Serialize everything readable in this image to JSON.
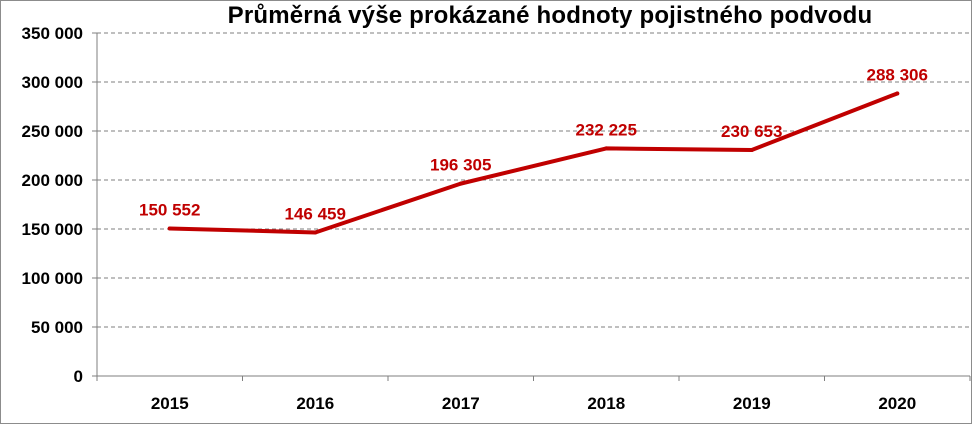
{
  "chart_data": {
    "type": "line",
    "title": "Průměrná výše prokázané hodnoty pojistného podvodu",
    "categories": [
      "2015",
      "2016",
      "2017",
      "2018",
      "2019",
      "2020"
    ],
    "series": [
      {
        "values": [
          150552,
          146459,
          196305,
          232225,
          230653,
          288306
        ],
        "labels": [
          "150 552",
          "146 459",
          "196 305",
          "232 225",
          "230 653",
          "288 306"
        ]
      }
    ],
    "yticks": [
      "0",
      "50 000",
      "100 000",
      "150 000",
      "200 000",
      "250 000",
      "300 000",
      "350 000"
    ],
    "ylim": [
      0,
      350000
    ],
    "grid": true,
    "line_color": "#c00000",
    "label_color": "#c00000",
    "grid_color": "#7f7f7f"
  }
}
